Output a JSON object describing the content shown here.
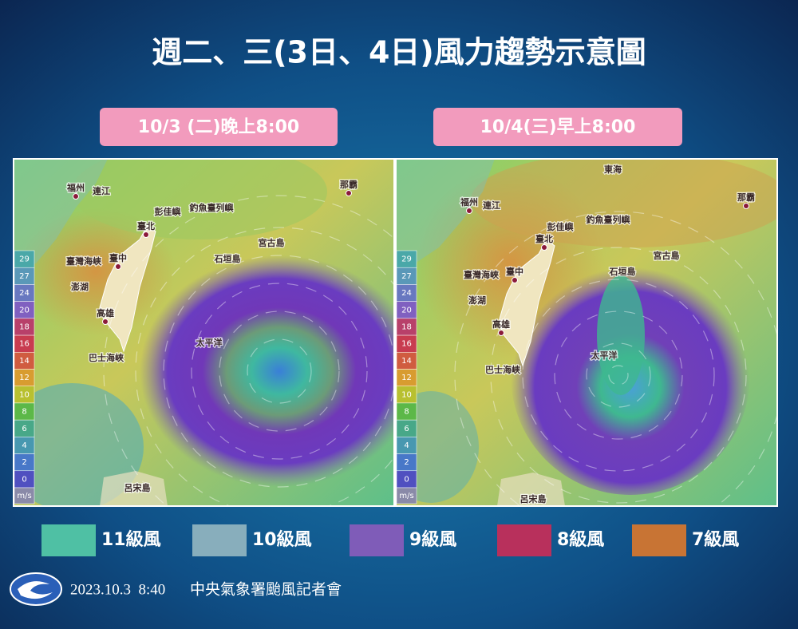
{
  "title": "週二、三(3日、4日)風力趨勢示意圖",
  "panels": [
    {
      "label": "10/3 (二)晚上8:00",
      "places": [
        "福州",
        "連江",
        "那霸",
        "彭佳嶼",
        "釣魚臺列嶼",
        "臺北",
        "臺灣海峽",
        "臺中",
        "澎湖",
        "高雄",
        "宮古島",
        "石垣島",
        "太平洋",
        "巴士海峽",
        "呂宋島"
      ]
    },
    {
      "label": "10/4(三)早上8:00",
      "places": [
        "東海",
        "福州",
        "連江",
        "那霸",
        "彭佳嶼",
        "釣魚臺列嶼",
        "臺北",
        "臺灣海峽",
        "臺中",
        "宮古島",
        "石垣島",
        "澎湖",
        "高雄",
        "太平洋",
        "巴士海峽",
        "呂宋島"
      ]
    }
  ],
  "scale": {
    "ticks": [
      "29",
      "27",
      "24",
      "20",
      "18",
      "16",
      "14",
      "12",
      "10",
      "8",
      "6",
      "4",
      "2",
      "0"
    ],
    "unit": "m/s"
  },
  "legend": [
    {
      "label": "11級風",
      "color": "#4fc0a4"
    },
    {
      "label": "10級風",
      "color": "#88aebc"
    },
    {
      "label": "9級風",
      "color": "#7f5cb8"
    },
    {
      "label": "8級風",
      "color": "#b8305c"
    },
    {
      "label": "7級風",
      "color": "#c87434"
    }
  ],
  "footer": {
    "date": "2023.10.3  8:40",
    "org": "中央氣象署颱風記者會"
  }
}
